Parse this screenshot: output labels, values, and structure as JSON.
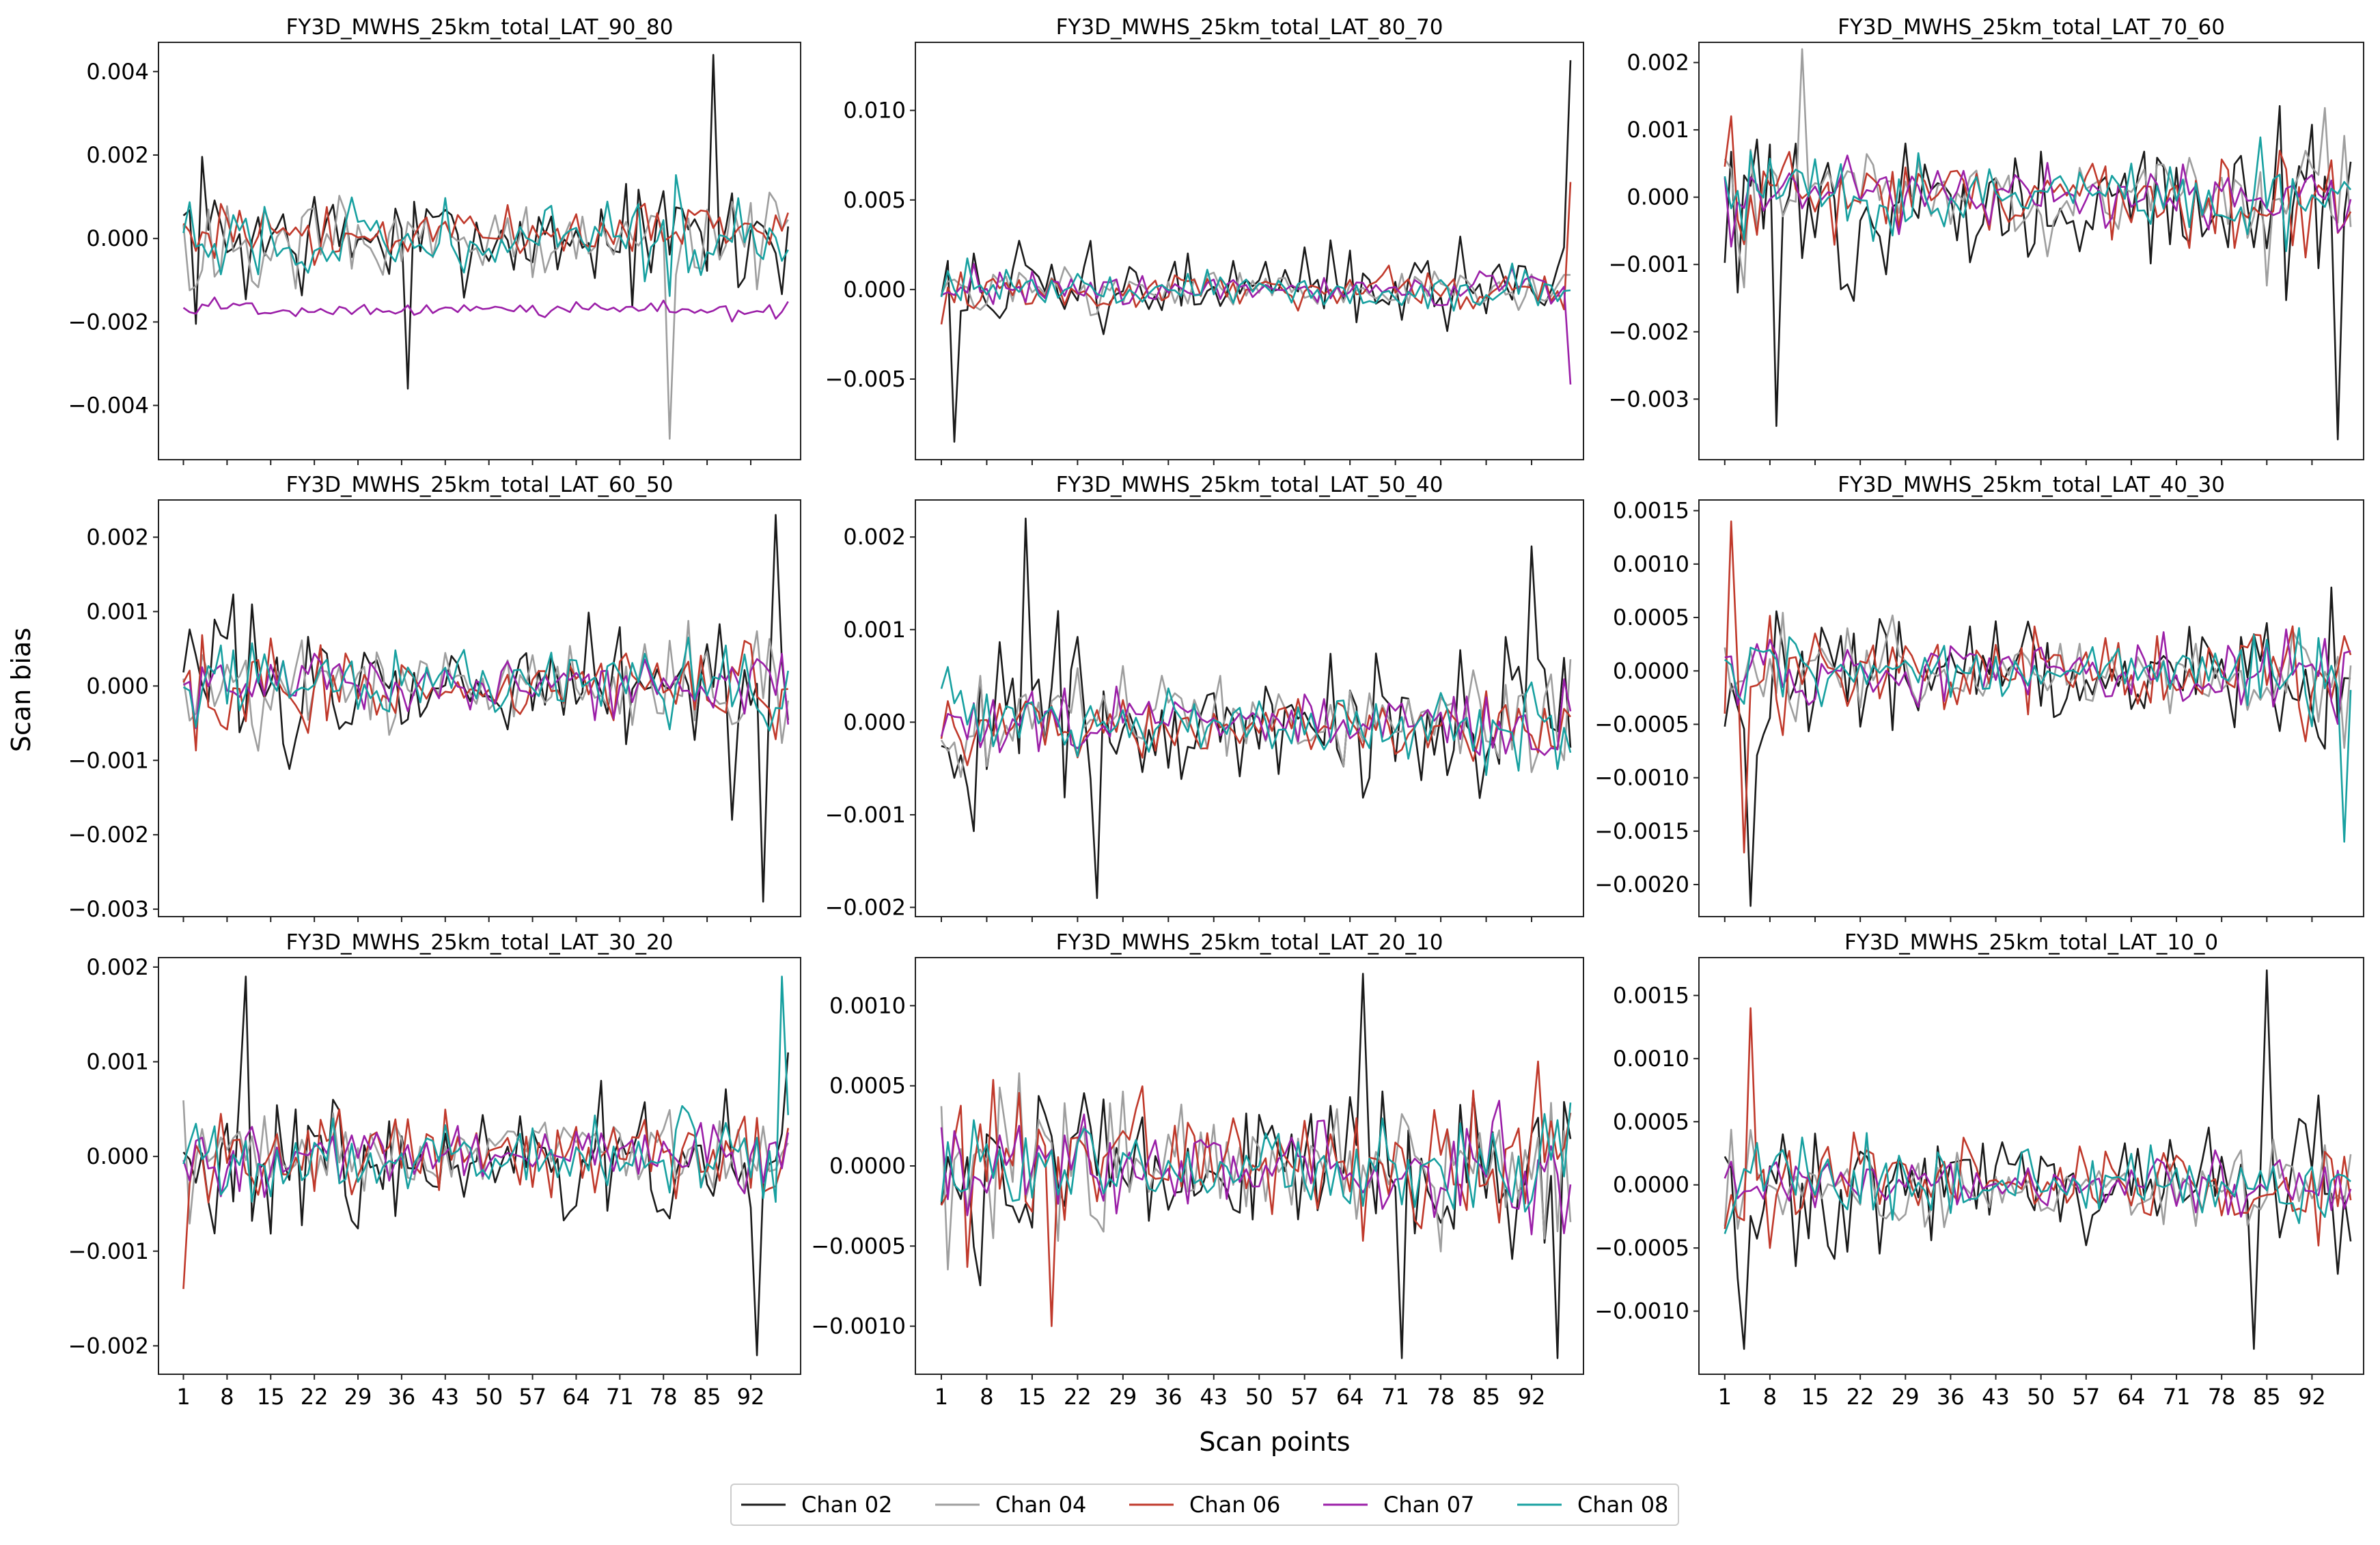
{
  "figure": {
    "ylabel": "Scan bias",
    "xlabel": "Scan points",
    "x_tick_labels": [
      "1",
      "8",
      "15",
      "22",
      "29",
      "36",
      "43",
      "50",
      "57",
      "64",
      "71",
      "78",
      "85",
      "92"
    ],
    "x_tick_positions": [
      1,
      8,
      15,
      22,
      29,
      36,
      43,
      50,
      57,
      64,
      71,
      78,
      85,
      92
    ],
    "scan_points": 98
  },
  "legend": [
    {
      "name": "Chan 02",
      "color": "#1a1a1a"
    },
    {
      "name": "Chan 04",
      "color": "#9e9e9e"
    },
    {
      "name": "Chan 06",
      "color": "#c0392b"
    },
    {
      "name": "Chan 07",
      "color": "#9b1fa8"
    },
    {
      "name": "Chan 08",
      "color": "#17a0a0"
    }
  ],
  "chart_data": [
    {
      "type": "line",
      "title": "FY3D_MWHS_25km_total_LAT_90_80",
      "ylim": [
        -0.0053,
        0.0047
      ],
      "yticks": [
        -0.004,
        -0.002,
        0.0,
        0.002,
        0.004
      ],
      "ytick_labels": [
        "−0.004",
        "−0.002",
        "0.000",
        "0.002",
        "0.004"
      ],
      "amplitude": [
        0.0014,
        0.001,
        0.0006,
        0.0002,
        0.001
      ],
      "offset": [
        0.0,
        0.0,
        0.0002,
        -0.0017,
        0.0
      ],
      "peaks": [
        {
          "series": 0,
          "x": 86,
          "y": 0.0044
        },
        {
          "series": 1,
          "x": 79,
          "y": -0.0048
        },
        {
          "series": 0,
          "x": 37,
          "y": -0.0036
        }
      ]
    },
    {
      "type": "line",
      "title": "FY3D_MWHS_25km_total_LAT_80_70",
      "ylim": [
        -0.0095,
        0.0138
      ],
      "yticks": [
        -0.005,
        0.0,
        0.005,
        0.01
      ],
      "ytick_labels": [
        "−0.005",
        "0.000",
        "0.005",
        "0.010"
      ],
      "amplitude": [
        0.0025,
        0.0012,
        0.0011,
        0.0009,
        0.001
      ],
      "offset": [
        0.0,
        0.0,
        0.0,
        0.0,
        0.0
      ],
      "peaks": [
        {
          "series": 0,
          "x": 98,
          "y": 0.0128
        },
        {
          "series": 0,
          "x": 3,
          "y": -0.0085
        },
        {
          "series": 2,
          "x": 98,
          "y": 0.006
        },
        {
          "series": 3,
          "x": 98,
          "y": -0.0053
        }
      ]
    },
    {
      "type": "line",
      "title": "FY3D_MWHS_25km_total_LAT_70_60",
      "ylim": [
        -0.0039,
        0.0023
      ],
      "yticks": [
        -0.003,
        -0.002,
        -0.001,
        0.0,
        0.001,
        0.002
      ],
      "ytick_labels": [
        "−0.003",
        "−0.002",
        "−0.001",
        "0.000",
        "0.001",
        "0.002"
      ],
      "amplitude": [
        0.0011,
        0.0008,
        0.0007,
        0.0005,
        0.0006
      ],
      "offset": [
        -0.0002,
        0.0,
        0.0,
        0.0,
        0.0
      ],
      "peaks": [
        {
          "series": 0,
          "x": 96,
          "y": -0.0036
        },
        {
          "series": 0,
          "x": 9,
          "y": -0.0034
        },
        {
          "series": 1,
          "x": 13,
          "y": 0.0022
        }
      ]
    },
    {
      "type": "line",
      "title": "FY3D_MWHS_25km_total_LAT_60_50",
      "ylim": [
        -0.0031,
        0.0025
      ],
      "yticks": [
        -0.003,
        -0.002,
        -0.001,
        0.0,
        0.001,
        0.002
      ],
      "ytick_labels": [
        "−0.003",
        "−0.002",
        "−0.001",
        "0.000",
        "0.001",
        "0.002"
      ],
      "amplitude": [
        0.0008,
        0.0006,
        0.0005,
        0.0004,
        0.0005
      ],
      "offset": [
        0.0,
        0.0,
        0.0,
        0.0,
        0.0
      ],
      "peaks": [
        {
          "series": 0,
          "x": 94,
          "y": -0.0029
        },
        {
          "series": 0,
          "x": 96,
          "y": 0.0023
        },
        {
          "series": 0,
          "x": 89,
          "y": -0.0018
        }
      ]
    },
    {
      "type": "line",
      "title": "FY3D_MWHS_25km_total_LAT_50_40",
      "ylim": [
        -0.0021,
        0.0024
      ],
      "yticks": [
        -0.002,
        -0.001,
        0.0,
        0.001,
        0.002
      ],
      "ytick_labels": [
        "−0.002",
        "−0.001",
        "0.000",
        "0.001",
        "0.002"
      ],
      "amplitude": [
        0.0008,
        0.0005,
        0.0004,
        0.0003,
        0.0004
      ],
      "offset": [
        0.0,
        0.0,
        0.0,
        0.0,
        0.0
      ],
      "peaks": [
        {
          "series": 0,
          "x": 14,
          "y": 0.0022
        },
        {
          "series": 0,
          "x": 25,
          "y": -0.0019
        },
        {
          "series": 0,
          "x": 92,
          "y": 0.0019
        }
      ]
    },
    {
      "type": "line",
      "title": "FY3D_MWHS_25km_total_LAT_40_30",
      "ylim": [
        -0.0023,
        0.0016
      ],
      "yticks": [
        -0.002,
        -0.0015,
        -0.001,
        -0.0005,
        0.0,
        0.0005,
        0.001,
        0.0015
      ],
      "ytick_labels": [
        "−0.0020",
        "−0.0015",
        "−0.0010",
        "−0.0005",
        "0.0000",
        "0.0005",
        "0.0010",
        "0.0015"
      ],
      "amplitude": [
        0.0006,
        0.0004,
        0.0004,
        0.0003,
        0.0003
      ],
      "offset": [
        0.0,
        0.0,
        0.0,
        0.0,
        0.0
      ],
      "peaks": [
        {
          "series": 0,
          "x": 5,
          "y": -0.0022
        },
        {
          "series": 2,
          "x": 2,
          "y": 0.0014
        },
        {
          "series": 2,
          "x": 4,
          "y": -0.0017
        },
        {
          "series": 4,
          "x": 97,
          "y": -0.0016
        }
      ]
    },
    {
      "type": "line",
      "title": "FY3D_MWHS_25km_total_LAT_30_20",
      "ylim": [
        -0.0023,
        0.0021
      ],
      "yticks": [
        -0.002,
        -0.001,
        0.0,
        0.001,
        0.002
      ],
      "ytick_labels": [
        "−0.002",
        "−0.001",
        "0.000",
        "0.001",
        "0.002"
      ],
      "amplitude": [
        0.0007,
        0.0004,
        0.0005,
        0.0003,
        0.0004
      ],
      "offset": [
        0.0,
        0.0,
        0.0,
        0.0,
        0.0
      ],
      "peaks": [
        {
          "series": 0,
          "x": 93,
          "y": -0.0021
        },
        {
          "series": 4,
          "x": 97,
          "y": 0.0019
        },
        {
          "series": 0,
          "x": 11,
          "y": 0.0019
        },
        {
          "series": 2,
          "x": 1,
          "y": -0.0014
        }
      ]
    },
    {
      "type": "line",
      "title": "FY3D_MWHS_25km_total_LAT_20_10",
      "ylim": [
        -0.0013,
        0.0013
      ],
      "yticks": [
        -0.001,
        -0.0005,
        0.0,
        0.0005,
        0.001
      ],
      "ytick_labels": [
        "−0.0010",
        "−0.0005",
        "0.0000",
        "0.0005",
        "0.0010"
      ],
      "amplitude": [
        0.0005,
        0.0004,
        0.0004,
        0.0003,
        0.0003
      ],
      "offset": [
        0.0,
        0.0,
        0.0,
        0.0,
        0.0
      ],
      "peaks": [
        {
          "series": 0,
          "x": 66,
          "y": 0.0012
        },
        {
          "series": 0,
          "x": 72,
          "y": -0.0012
        },
        {
          "series": 0,
          "x": 96,
          "y": -0.0012
        },
        {
          "series": 2,
          "x": 18,
          "y": -0.001
        }
      ]
    },
    {
      "type": "line",
      "title": "FY3D_MWHS_25km_total_LAT_10_0",
      "ylim": [
        -0.0015,
        0.0018
      ],
      "yticks": [
        -0.001,
        -0.0005,
        0.0,
        0.0005,
        0.001,
        0.0015
      ],
      "ytick_labels": [
        "−0.0010",
        "−0.0005",
        "0.0000",
        "0.0005",
        "0.0010",
        "0.0015"
      ],
      "amplitude": [
        0.0005,
        0.0003,
        0.0003,
        0.0002,
        0.0003
      ],
      "offset": [
        0.0,
        0.0,
        0.0,
        0.0,
        0.0
      ],
      "peaks": [
        {
          "series": 0,
          "x": 85,
          "y": 0.0017
        },
        {
          "series": 0,
          "x": 83,
          "y": -0.0013
        },
        {
          "series": 0,
          "x": 4,
          "y": -0.0013
        },
        {
          "series": 2,
          "x": 5,
          "y": 0.0014
        }
      ]
    }
  ]
}
